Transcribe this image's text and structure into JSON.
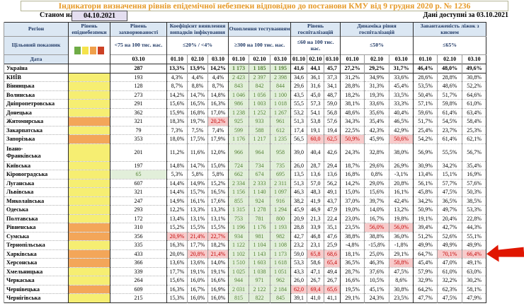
{
  "title": "Індикатори визначення рівнів епідемічної небезпеки відповідно до постанови КМУ від 9 грудня 2020 р. № 1236",
  "header": {
    "as_of_label": "Станом на",
    "as_of_date": "04.10.2021",
    "available_label": "Дані доступні за",
    "available_date": "03.10.2021"
  },
  "colors": {
    "header_bg": "#dbe7f3",
    "header_text": "#1f3864",
    "title_text": "#e69a28",
    "level_yellow": "#f6ee72",
    "level_orange": "#f3a659",
    "ok_bg": "#e2efda",
    "ok_text": "#538135",
    "alert_bg": "#f8cbcb",
    "alert_text": "#c00000",
    "arrow": "#e01600",
    "legend": [
      "#6fac46",
      "#f5e34b",
      "#f0a04b",
      "#cc4125"
    ]
  },
  "table": {
    "corner": {
      "region": "Регіон",
      "target": "Цільовий показник",
      "date": "Дата"
    },
    "groups": [
      {
        "key": "level",
        "label": "Рівень епіднебезпеки",
        "threshold": "",
        "dates": []
      },
      {
        "key": "incidence",
        "label": "Рівень захворюваності",
        "threshold": "<75 на 100 тис. нас.",
        "dates": [
          "03.10"
        ]
      },
      {
        "key": "coef",
        "label": "Коефіцієнт виявлення випадків інфікування",
        "threshold": "≤20% / <4%",
        "dates": [
          "01.10",
          "02.10",
          "03.10"
        ]
      },
      {
        "key": "test",
        "label": "Охоплення тестуванням",
        "threshold": "≥300 на 100 тис. нас.",
        "dates": [
          "01.10",
          "02.10",
          "03.10"
        ]
      },
      {
        "key": "hosp",
        "label": "Рівень госпіталізацій",
        "threshold": "≤60 на 100 тис. нас.",
        "dates": [
          "01.10",
          "02.10",
          "03.10"
        ]
      },
      {
        "key": "dyn",
        "label": "Динаміка рівня госпіталізацій",
        "threshold": "≤50%",
        "dates": [
          "01.10",
          "02.10",
          "03.10"
        ]
      },
      {
        "key": "beds",
        "label": "Завантаженість ліжок з киснем",
        "threshold": "≤65%",
        "dates": [
          "01.10",
          "02.10",
          "03.10"
        ]
      }
    ],
    "rows": [
      {
        "region": "Україна",
        "bold": true,
        "level": "none",
        "incidence": "287",
        "coef": [
          "13,3%",
          "13,9%",
          "14,2%"
        ],
        "test": [
          "1 173",
          "1 185",
          "1 195"
        ],
        "hosp": [
          "41,6",
          "44,1",
          "45,7"
        ],
        "dyn": [
          "27,2%",
          "29,2%",
          "31,7%"
        ],
        "beds": [
          "46,4%",
          "48,0%",
          "49,6%"
        ]
      },
      {
        "region": "КИЇВ",
        "level": "yellow",
        "incidence": "193",
        "coef": [
          "4,3%",
          "4,4%",
          "4,4%"
        ],
        "test": [
          "2 423",
          "2 397",
          "2 398"
        ],
        "hosp": [
          "34,6",
          "36,1",
          "37,3"
        ],
        "dyn": [
          "31,2%",
          "34,9%",
          "33,6%"
        ],
        "beds": [
          "28,6%",
          "28,8%",
          "30,8%"
        ]
      },
      {
        "region": "Вінницька",
        "level": "yellow",
        "incidence": "128",
        "coef": [
          "8,7%",
          "8,8%",
          "8,7%"
        ],
        "test": [
          "843",
          "842",
          "844"
        ],
        "hosp": [
          "29,6",
          "31,6",
          "34,1"
        ],
        "dyn": [
          "28,8%",
          "31,3%",
          "45,4%"
        ],
        "beds": [
          "53,5%",
          "48,6%",
          "52,2%"
        ]
      },
      {
        "region": "Волинська",
        "level": "yellow",
        "incidence": "273",
        "coef": [
          "14,2%",
          "14,7%",
          "14,8%"
        ],
        "test": [
          "1 046",
          "1 056",
          "1 100"
        ],
        "hosp": [
          "43,5",
          "45,0",
          "48,7"
        ],
        "dyn": [
          "18,2%",
          "19,3%",
          "33,5%"
        ],
        "beds": [
          "50,4%",
          "51,7%",
          "64,6%"
        ]
      },
      {
        "region": "Дніпропетровська",
        "level": "yellow",
        "incidence": "291",
        "coef": [
          "15,6%",
          "16,5%",
          "16,3%"
        ],
        "test": [
          "986",
          "1 003",
          "1 018"
        ],
        "hosp": [
          "55,5",
          "57,3",
          "59,0"
        ],
        "dyn": [
          "38,1%",
          "33,6%",
          "33,3%"
        ],
        "beds": [
          "57,1%",
          "59,8%",
          "61,0%"
        ]
      },
      {
        "region": "Донецька",
        "level": "yellow",
        "incidence": "362",
        "coef": [
          "15,9%",
          "16,8%",
          "17,0%"
        ],
        "test": [
          "1 238",
          "1 252",
          "1 267"
        ],
        "hosp": [
          "53,2",
          "54,1",
          "56,8"
        ],
        "dyn": [
          "48,6%",
          "35,6%",
          "40,4%"
        ],
        "beds": [
          "59,6%",
          "61,4%",
          "63,4%"
        ]
      },
      {
        "region": "Житомирська",
        "level": "orange",
        "incidence": "321",
        "coef": [
          "18,3%",
          "19,7%",
          "20,2%"
        ],
        "coef_alert": [
          2
        ],
        "test": [
          "925",
          "933",
          "961"
        ],
        "hosp": [
          "51,3",
          "53,8",
          "57,6"
        ],
        "dyn": [
          "34,3%",
          "35,4%",
          "46,5%"
        ],
        "beds": [
          "51,7%",
          "54,5%",
          "58,4%"
        ]
      },
      {
        "region": "Закарпатська",
        "level": "yellow",
        "incidence": "79",
        "coef": [
          "7,3%",
          "7,5%",
          "7,4%"
        ],
        "test": [
          "599",
          "588",
          "612"
        ],
        "hosp": [
          "17,4",
          "19,1",
          "19,4"
        ],
        "dyn": [
          "22,5%",
          "42,3%",
          "42,9%"
        ],
        "beds": [
          "25,4%",
          "23,7%",
          "25,3%"
        ]
      },
      {
        "region": "Запорізька",
        "level": "orange",
        "incidence": "353",
        "coef": [
          "18,0%",
          "17,5%",
          "17,9%"
        ],
        "test": [
          "1 176",
          "1 217",
          "1 235"
        ],
        "hosp": [
          "56,5",
          "60,0",
          "62,5"
        ],
        "hosp_alert": [
          1,
          2
        ],
        "dyn": [
          "50,9%",
          "45,9%",
          "50,6%"
        ],
        "dyn_alert": [
          0,
          2
        ],
        "beds": [
          "54,2%",
          "61,4%",
          "62,1%"
        ]
      },
      {
        "region": "Івано-Франківська",
        "tall": true,
        "level": "yellow",
        "incidence": "201",
        "coef": [
          "11,2%",
          "11,6%",
          "12,0%"
        ],
        "test": [
          "966",
          "964",
          "958"
        ],
        "hosp": [
          "39,0",
          "40,4",
          "42,6"
        ],
        "dyn": [
          "24,3%",
          "32,8%",
          "38,0%"
        ],
        "beds": [
          "56,9%",
          "55,5%",
          "56,7%"
        ]
      },
      {
        "region": "Київська",
        "level": "yellow",
        "incidence": "197",
        "coef": [
          "14,8%",
          "14,7%",
          "15,0%"
        ],
        "test": [
          "724",
          "734",
          "735"
        ],
        "hosp": [
          "26,0",
          "28,7",
          "29,4"
        ],
        "dyn": [
          "18,7%",
          "29,6%",
          "26,9%"
        ],
        "beds": [
          "30,9%",
          "34,2%",
          "35,4%"
        ]
      },
      {
        "region": "Кіровоградська",
        "level": "yellow",
        "incidence": "65",
        "incidence_ok": true,
        "coef": [
          "5,3%",
          "5,8%",
          "5,8%"
        ],
        "test": [
          "662",
          "674",
          "695"
        ],
        "hosp": [
          "13,5",
          "13,6",
          "13,6"
        ],
        "dyn": [
          "16,8%",
          "0,8%",
          "-3,1%"
        ],
        "beds": [
          "13,4%",
          "15,1%",
          "16,9%"
        ]
      },
      {
        "region": "Луганська",
        "level": "yellow",
        "incidence": "607",
        "coef": [
          "14,4%",
          "14,9%",
          "15,2%"
        ],
        "test": [
          "2 334",
          "2 333",
          "2 311"
        ],
        "hosp": [
          "51,3",
          "57,0",
          "56,2"
        ],
        "dyn": [
          "14,2%",
          "29,0%",
          "20,8%"
        ],
        "beds": [
          "56,1%",
          "57,7%",
          "57,6%"
        ]
      },
      {
        "region": "Львівська",
        "level": "yellow",
        "incidence": "321",
        "coef": [
          "14,4%",
          "15,7%",
          "16,5%"
        ],
        "test": [
          "1 156",
          "1 140",
          "1 097"
        ],
        "hosp": [
          "46,3",
          "48,3",
          "49,1"
        ],
        "dyn": [
          "15,0%",
          "15,6%",
          "16,1%"
        ],
        "beds": [
          "45,8%",
          "47,5%",
          "50,3%"
        ]
      },
      {
        "region": "Миколаївська",
        "level": "yellow",
        "incidence": "247",
        "coef": [
          "14,9%",
          "16,1%",
          "17,6%"
        ],
        "test": [
          "855",
          "924",
          "916"
        ],
        "hosp": [
          "38,2",
          "41,9",
          "43,7"
        ],
        "dyn": [
          "37,0%",
          "39,7%",
          "42,4%"
        ],
        "beds": [
          "34,2%",
          "36,5%",
          "38,5%"
        ]
      },
      {
        "region": "Одеська",
        "level": "yellow",
        "incidence": "293",
        "coef": [
          "12,2%",
          "13,3%",
          "13,3%"
        ],
        "test": [
          "1 315",
          "1 278",
          "1 294"
        ],
        "hosp": [
          "45,9",
          "46,9",
          "47,9"
        ],
        "dyn": [
          "19,0%",
          "14,0%",
          "13,2%"
        ],
        "beds": [
          "50,9%",
          "49,7%",
          "53,3%"
        ]
      },
      {
        "region": "Полтавська",
        "level": "yellow",
        "incidence": "172",
        "coef": [
          "13,4%",
          "13,1%",
          "13,1%"
        ],
        "test": [
          "753",
          "781",
          "800"
        ],
        "hosp": [
          "20,9",
          "21,3",
          "22,4"
        ],
        "dyn": [
          "23,0%",
          "16,7%",
          "19,8%"
        ],
        "beds": [
          "19,1%",
          "20,4%",
          "22,8%"
        ]
      },
      {
        "region": "Рівненська",
        "level": "orange",
        "incidence": "310",
        "coef": [
          "15,2%",
          "15,5%",
          "15,5%"
        ],
        "test": [
          "1 196",
          "1 176",
          "1 193"
        ],
        "hosp": [
          "28,8",
          "33,9",
          "35,1"
        ],
        "dyn": [
          "23,5%",
          "56,0%",
          "56,0%"
        ],
        "dyn_alert": [
          1,
          2
        ],
        "beds": [
          "39,4%",
          "42,7%",
          "44,3%"
        ]
      },
      {
        "region": "Сумська",
        "level": "orange",
        "incidence": "356",
        "coef": [
          "20,9%",
          "21,4%",
          "22,7%"
        ],
        "coef_alert": [
          0,
          1,
          2
        ],
        "test": [
          "934",
          "981",
          "982"
        ],
        "hosp": [
          "42,7",
          "46,8",
          "47,6"
        ],
        "dyn": [
          "38,8%",
          "38,8%",
          "36,0%"
        ],
        "beds": [
          "51,2%",
          "52,6%",
          "55,1%"
        ]
      },
      {
        "region": "Тернопільська",
        "level": "yellow",
        "incidence": "335",
        "coef": [
          "16,3%",
          "17,7%",
          "18,2%"
        ],
        "test": [
          "1 122",
          "1 104",
          "1 108"
        ],
        "hosp": [
          "23,2",
          "23,1",
          "25,9"
        ],
        "dyn": [
          "-4,8%",
          "-15,8%",
          "-1,8%"
        ],
        "beds": [
          "49,9%",
          "49,9%",
          "49,9%"
        ]
      },
      {
        "region": "Харківська",
        "level": "orange",
        "incidence": "433",
        "coef": [
          "20,0%",
          "20,8%",
          "21,4%"
        ],
        "coef_alert": [
          1,
          2
        ],
        "test": [
          "1 102",
          "1 143",
          "1 173"
        ],
        "hosp": [
          "59,0",
          "65,8",
          "68,6"
        ],
        "hosp_alert": [
          1,
          2
        ],
        "dyn": [
          "18,1%",
          "25,0%",
          "29,1%"
        ],
        "beds": [
          "64,7%",
          "70,1%",
          "66,4%"
        ],
        "beds_alert": [
          1,
          2
        ]
      },
      {
        "region": "Херсонська",
        "level": "orange",
        "incidence": "366",
        "coef": [
          "13,6%",
          "13,6%",
          "14,0%"
        ],
        "test": [
          "1 510",
          "1 603",
          "1 618"
        ],
        "hosp": [
          "53,3",
          "58,6",
          "65,4"
        ],
        "hosp_alert": [
          2
        ],
        "dyn": [
          "36,5%",
          "46,3%",
          "58,8%"
        ],
        "dyn_alert": [
          2
        ],
        "beds": [
          "45,4%",
          "47,0%",
          "49,1%"
        ]
      },
      {
        "region": "Хмельницька",
        "level": "yellow",
        "incidence": "339",
        "coef": [
          "17,7%",
          "19,1%",
          "19,1%"
        ],
        "test": [
          "1 025",
          "1 038",
          "1 051"
        ],
        "hosp": [
          "43,3",
          "47,1",
          "49,4"
        ],
        "dyn": [
          "28,7%",
          "37,6%",
          "47,5%"
        ],
        "beds": [
          "57,9%",
          "61,0%",
          "63,0%"
        ]
      },
      {
        "region": "Черкаська",
        "level": "yellow",
        "incidence": "264",
        "coef": [
          "15,6%",
          "16,0%",
          "16,6%"
        ],
        "test": [
          "944",
          "971",
          "962"
        ],
        "hosp": [
          "26,0",
          "26,7",
          "26,7"
        ],
        "dyn": [
          "16,6%",
          "10,5%",
          "8,6%"
        ],
        "beds": [
          "32,9%",
          "32,2%",
          "30,2%"
        ]
      },
      {
        "region": "Чернівецька",
        "level": "orange",
        "incidence": "609",
        "coef": [
          "16,3%",
          "16,7%",
          "16,9%"
        ],
        "test": [
          "2 031",
          "2 122",
          "2 184"
        ],
        "hosp": [
          "62,0",
          "69,4",
          "65,6"
        ],
        "hosp_alert": [
          0,
          1,
          2
        ],
        "dyn": [
          "19,5%",
          "45,1%",
          "30,8%"
        ],
        "beds": [
          "64,2%",
          "62,3%",
          "58,1%"
        ]
      },
      {
        "region": "Чернігівська",
        "level": "yellow",
        "incidence": "215",
        "coef": [
          "15,3%",
          "16,0%",
          "16,0%"
        ],
        "test": [
          "815",
          "822",
          "845"
        ],
        "hosp": [
          "39,1",
          "41,0",
          "41,1"
        ],
        "dyn": [
          "29,1%",
          "24,3%",
          "23,5%"
        ],
        "beds": [
          "47,7%",
          "47,5%",
          "47,9%"
        ]
      }
    ]
  },
  "annotation": {
    "arrow_target_row": "Харківська"
  }
}
